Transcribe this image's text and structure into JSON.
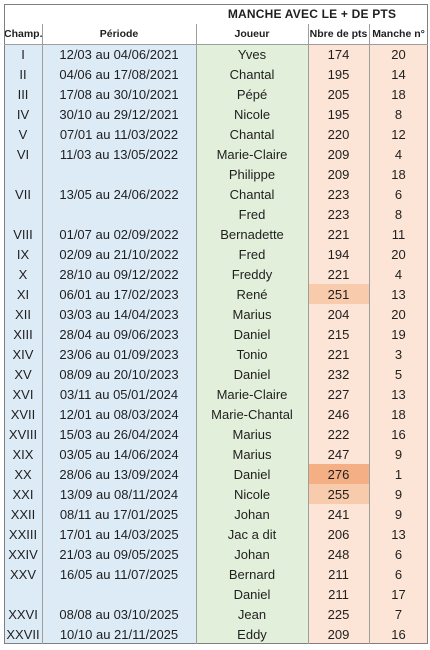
{
  "title": "MANCHE AVEC LE + DE PTS",
  "headers": {
    "champ": "Champ.",
    "periode": "Période",
    "joueur": "Joueur",
    "pts": "Nbre de pts",
    "manche": "Manche n°"
  },
  "colors": {
    "blue": "#ddebf7",
    "green": "#e2efda",
    "pink": "#fce4d6",
    "highlight_max": "#f4b084",
    "highlight_high": "#f8cbad"
  },
  "rows": [
    {
      "champ": "I",
      "periode": "12/03 au 04/06/2021",
      "joueur": "Yves",
      "pts": "174",
      "manche": "20"
    },
    {
      "champ": "II",
      "periode": "04/06 au 17/08/2021",
      "joueur": "Chantal",
      "pts": "195",
      "manche": "14"
    },
    {
      "champ": "III",
      "periode": "17/08 au 30/10/2021",
      "joueur": "Pépé",
      "pts": "205",
      "manche": "18"
    },
    {
      "champ": "IV",
      "periode": "30/10 au 29/12/2021",
      "joueur": "Nicole",
      "pts": "195",
      "manche": "8"
    },
    {
      "champ": "V",
      "periode": "07/01 au 11/03/2022",
      "joueur": "Chantal",
      "pts": "220",
      "manche": "12"
    },
    {
      "champ": "VI",
      "periode": "11/03 au 13/05/2022",
      "joueur": "Marie-Claire",
      "pts": "209",
      "manche": "4"
    },
    {
      "champ": "",
      "periode": "",
      "joueur": "Philippe",
      "pts": "209",
      "manche": "18"
    },
    {
      "champ": "VII",
      "periode": "13/05 au 24/06/2022",
      "joueur": "Chantal",
      "pts": "223",
      "manche": "6"
    },
    {
      "champ": "",
      "periode": "",
      "joueur": "Fred",
      "pts": "223",
      "manche": "8"
    },
    {
      "champ": "VIII",
      "periode": "01/07 au 02/09/2022",
      "joueur": "Bernadette",
      "pts": "221",
      "manche": "11"
    },
    {
      "champ": "IX",
      "periode": "02/09 au 21/10/2022",
      "joueur": "Fred",
      "pts": "194",
      "manche": "20"
    },
    {
      "champ": "X",
      "periode": "28/10 au 09/12/2022",
      "joueur": "Freddy",
      "pts": "221",
      "manche": "4"
    },
    {
      "champ": "XI",
      "periode": "06/01 au 17/02/2023",
      "joueur": "René",
      "pts": "251",
      "manche": "13"
    },
    {
      "champ": "XII",
      "periode": "03/03 au 14/04/2023",
      "joueur": "Marius",
      "pts": "204",
      "manche": "20"
    },
    {
      "champ": "XIII",
      "periode": "28/04 au 09/06/2023",
      "joueur": "Daniel",
      "pts": "215",
      "manche": "19"
    },
    {
      "champ": "XIV",
      "periode": "23/06 au 01/09/2023",
      "joueur": "Tonio",
      "pts": "221",
      "manche": "3"
    },
    {
      "champ": "XV",
      "periode": "08/09 au 20/10/2023",
      "joueur": "Daniel",
      "pts": "232",
      "manche": "5"
    },
    {
      "champ": "XVI",
      "periode": "03/11 au 05/01/2024",
      "joueur": "Marie-Claire",
      "pts": "227",
      "manche": "13"
    },
    {
      "champ": "XVII",
      "periode": "12/01 au 08/03/2024",
      "joueur": "Marie-Chantal",
      "pts": "246",
      "manche": "18"
    },
    {
      "champ": "XVIII",
      "periode": "15/03 au 26/04/2024",
      "joueur": "Marius",
      "pts": "222",
      "manche": "16"
    },
    {
      "champ": "XIX",
      "periode": "03/05 au 14/06/2024",
      "joueur": "Marius",
      "pts": "247",
      "manche": "9"
    },
    {
      "champ": "XX",
      "periode": "28/06 au 13/09/2024",
      "joueur": "Daniel",
      "pts": "276",
      "manche": "1"
    },
    {
      "champ": "XXI",
      "periode": "13/09 au 08/11/2024",
      "joueur": "Nicole",
      "pts": "255",
      "manche": "9"
    },
    {
      "champ": "XXII",
      "periode": "08/11 au 17/01/2025",
      "joueur": "Johan",
      "pts": "241",
      "manche": "9"
    },
    {
      "champ": "XXIII",
      "periode": "17/01 au 14/03/2025",
      "joueur": "Jac a dit",
      "pts": "206",
      "manche": "13"
    },
    {
      "champ": "XXIV",
      "periode": "21/03 au 09/05/2025",
      "joueur": "Johan",
      "pts": "248",
      "manche": "6"
    },
    {
      "champ": "XXV",
      "periode": "16/05 au 11/07/2025",
      "joueur": "Bernard",
      "pts": "211",
      "manche": "6"
    },
    {
      "champ": "",
      "periode": "",
      "joueur": "Daniel",
      "pts": "211",
      "manche": "17"
    },
    {
      "champ": "XXVI",
      "periode": "08/08 au 03/10/2025",
      "joueur": "Jean",
      "pts": "225",
      "manche": "7"
    },
    {
      "champ": "XXVII",
      "periode": "10/10 au 21/11/2025",
      "joueur": "Eddy",
      "pts": "209",
      "manche": "16"
    }
  ]
}
